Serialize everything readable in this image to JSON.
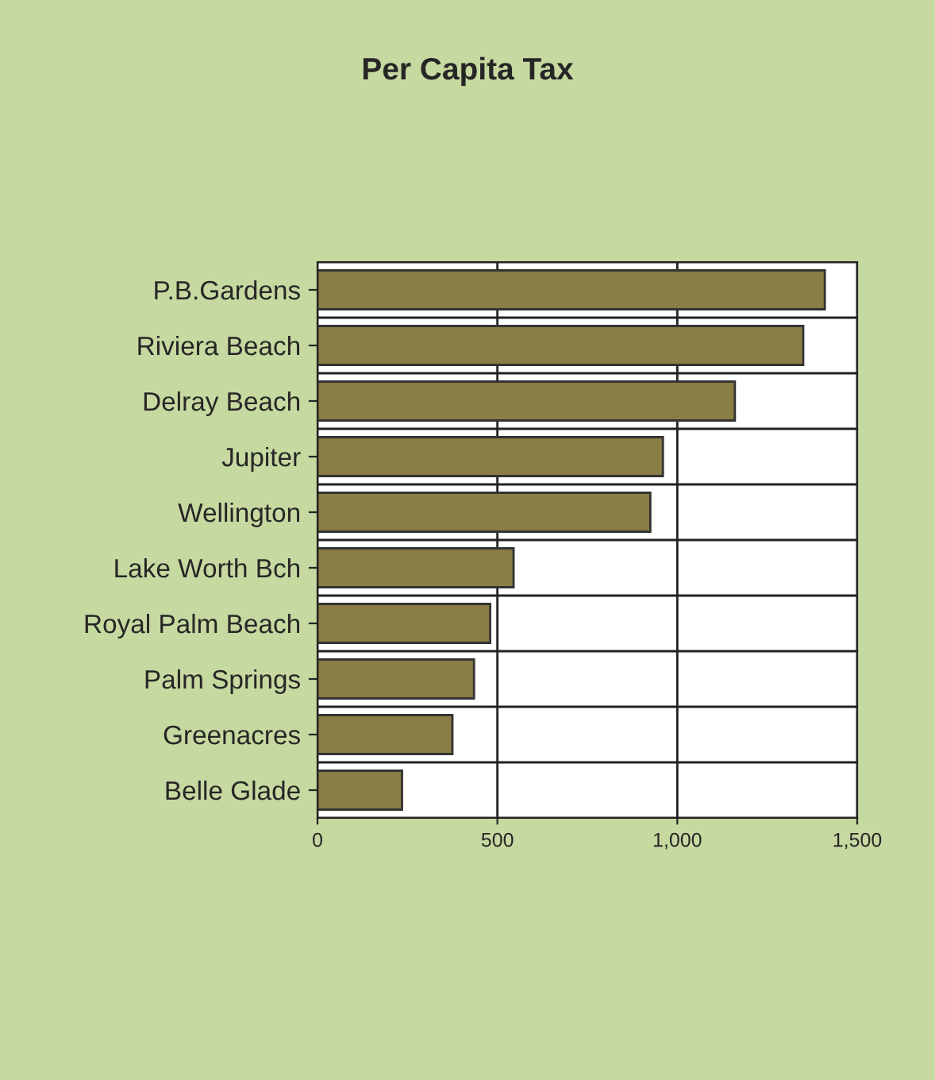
{
  "chart_data": {
    "type": "bar",
    "orientation": "horizontal",
    "title": "Per Capita Tax",
    "categories": [
      "P.B.Gardens",
      "Riviera Beach",
      "Delray Beach",
      "Jupiter",
      "Wellington",
      "Lake Worth Bch",
      "Royal Palm Beach",
      "Palm Springs",
      "Greenacres",
      "Belle Glade"
    ],
    "values": [
      1410,
      1350,
      1160,
      960,
      925,
      545,
      480,
      435,
      375,
      235
    ],
    "color": "#8a7d45",
    "xlim": [
      0,
      1500
    ],
    "xticks": [
      0,
      {
        "value": 500,
        "label": "500"
      },
      {
        "value": 1000,
        "label": "1,000"
      },
      {
        "value": 1500,
        "label": "1,500"
      }
    ],
    "grid": true,
    "legend": false
  }
}
